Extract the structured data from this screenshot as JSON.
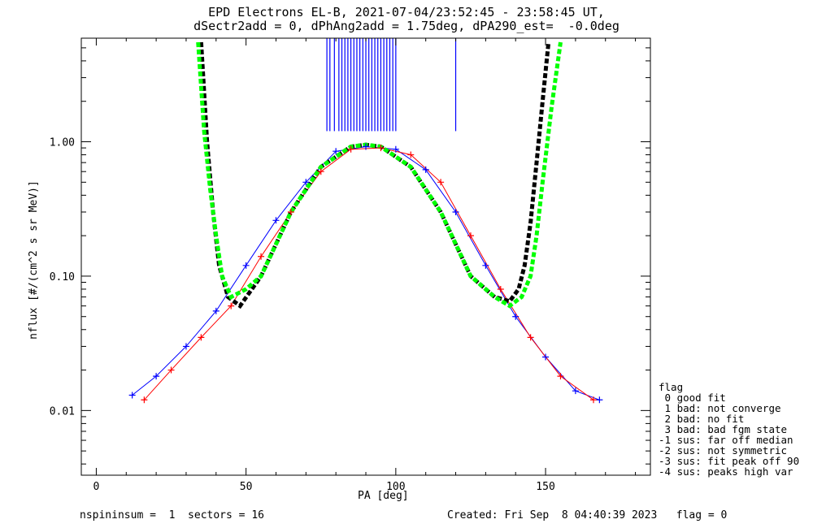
{
  "header": {
    "title_line1": "EPD Electrons EL-B, 2021-07-04/23:52:45 - 23:58:45 UT,",
    "title_line2": "dSectr2add = 0, dPhAng2add = 1.75deg, dPA290_est=  -0.0deg"
  },
  "footer": {
    "left": "nspininsum =  1  sectors = 16",
    "right": "Created: Fri Sep  8 04:40:39 2023   flag = 0"
  },
  "legend": {
    "title": "flag",
    "items": [
      " 0 good fit",
      " 1 bad: not converge",
      " 2 bad: no fit",
      " 3 bad: bad fgm state",
      "-1 sus: far off median",
      "-2 sus: not symmetric",
      "-3 sus: fit peak off 90",
      "-4 sus: peaks high var"
    ]
  },
  "chart_data": {
    "type": "line",
    "xlabel": "PA [deg]",
    "ylabel": "nflux [#/(cm^2 s sr MeV)]",
    "x_scale": "linear",
    "y_scale": "log",
    "xlim": [
      -5,
      185
    ],
    "ylim": [
      0.0033,
      5.9
    ],
    "x_ticks": [
      0,
      50,
      100,
      150
    ],
    "x_tick_labels": [
      "0",
      "50",
      "100",
      "150"
    ],
    "y_ticks": [
      0.01,
      0.1,
      1.0
    ],
    "y_tick_labels": [
      "0.01",
      "0.10",
      "1.00"
    ],
    "series": [
      {
        "color": "#0000ff",
        "marker": "+",
        "x": [
          12,
          20,
          30,
          40,
          50,
          60,
          70,
          80,
          90,
          100,
          110,
          120,
          130,
          140,
          150,
          160,
          168
        ],
        "y": [
          0.013,
          0.018,
          0.03,
          0.055,
          0.12,
          0.26,
          0.5,
          0.85,
          0.92,
          0.88,
          0.62,
          0.3,
          0.12,
          0.05,
          0.025,
          0.014,
          0.012
        ]
      },
      {
        "color": "#ff0000",
        "marker": "+",
        "x": [
          16,
          25,
          35,
          45,
          55,
          65,
          75,
          85,
          95,
          105,
          115,
          125,
          135,
          145,
          155,
          166
        ],
        "y": [
          0.012,
          0.02,
          0.035,
          0.06,
          0.14,
          0.3,
          0.6,
          0.88,
          0.9,
          0.8,
          0.5,
          0.2,
          0.08,
          0.035,
          0.018,
          0.012
        ]
      },
      {
        "color": "#000000",
        "style": "dashed",
        "x": [
          35,
          37,
          39,
          41,
          44,
          48,
          55,
          65,
          75,
          85,
          90,
          95,
          105,
          115,
          125,
          133,
          138,
          141,
          143,
          145,
          147,
          149,
          151
        ],
        "y": [
          5.5,
          1.0,
          0.3,
          0.12,
          0.07,
          0.06,
          0.1,
          0.3,
          0.65,
          0.92,
          0.95,
          0.92,
          0.65,
          0.3,
          0.1,
          0.07,
          0.065,
          0.08,
          0.12,
          0.25,
          0.7,
          2.0,
          5.5
        ]
      },
      {
        "color": "#00ff00",
        "style": "dashed",
        "x": [
          34,
          36,
          38,
          40,
          42,
          45,
          50,
          55,
          65,
          75,
          85,
          90,
          95,
          105,
          115,
          125,
          133,
          138,
          142,
          145,
          147,
          149,
          152,
          155
        ],
        "y": [
          5.5,
          1.2,
          0.45,
          0.2,
          0.1,
          0.07,
          0.08,
          0.1,
          0.3,
          0.65,
          0.92,
          0.95,
          0.92,
          0.65,
          0.3,
          0.1,
          0.07,
          0.06,
          0.07,
          0.1,
          0.2,
          0.5,
          1.8,
          5.5
        ]
      }
    ],
    "vertical_lines": {
      "color": "#0000ff",
      "x": [
        77,
        78,
        79.5,
        81,
        82,
        83,
        84,
        85,
        86,
        87,
        88,
        89,
        90,
        91,
        92,
        93,
        94,
        95,
        96,
        97,
        98,
        99,
        100,
        120
      ],
      "y_bottom": 1.2
    }
  }
}
